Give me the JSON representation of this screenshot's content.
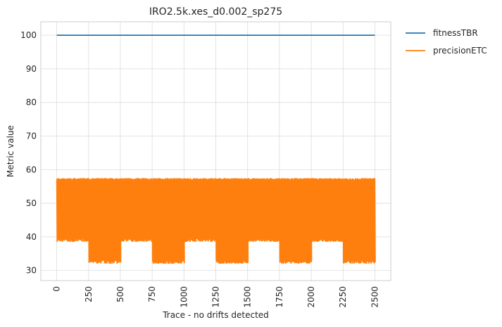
{
  "chart_data": {
    "type": "line",
    "title": "IRO2.5k.xes_d0.002_sp275",
    "xlabel": "Trace - no drifts detected",
    "ylabel": "Metric value",
    "xlim": [
      -125,
      2625
    ],
    "ylim": [
      27,
      104
    ],
    "x_ticks": [
      "0",
      "250",
      "500",
      "750",
      "1000",
      "1250",
      "1500",
      "1750",
      "2000",
      "2250",
      "2500"
    ],
    "y_ticks": [
      "30",
      "40",
      "50",
      "60",
      "70",
      "80",
      "90",
      "100"
    ],
    "grid": true,
    "legend_position": "outside-top-right",
    "series": [
      {
        "name": "fitnessTBR",
        "color": "#1f77b4",
        "x_range": [
          0,
          2500
        ],
        "value": 100
      },
      {
        "name": "precisionETC",
        "color": "#ff7f0e",
        "x_range": [
          0,
          2500
        ],
        "segments": [
          {
            "x": [
              0,
              250
            ],
            "low": 38.5,
            "high": 57.5
          },
          {
            "x": [
              250,
              500
            ],
            "low": 32,
            "high": 57.5
          },
          {
            "x": [
              500,
              750
            ],
            "low": 38.5,
            "high": 57.5
          },
          {
            "x": [
              750,
              1000
            ],
            "low": 32,
            "high": 57.5
          },
          {
            "x": [
              1000,
              1250
            ],
            "low": 38.5,
            "high": 57.5
          },
          {
            "x": [
              1250,
              1500
            ],
            "low": 32,
            "high": 57.5
          },
          {
            "x": [
              1500,
              1750
            ],
            "low": 38.5,
            "high": 57.5
          },
          {
            "x": [
              1750,
              2000
            ],
            "low": 32,
            "high": 57.5
          },
          {
            "x": [
              2000,
              2250
            ],
            "low": 38.5,
            "high": 57.5
          },
          {
            "x": [
              2250,
              2500
            ],
            "low": 32,
            "high": 57.5
          }
        ]
      }
    ]
  }
}
